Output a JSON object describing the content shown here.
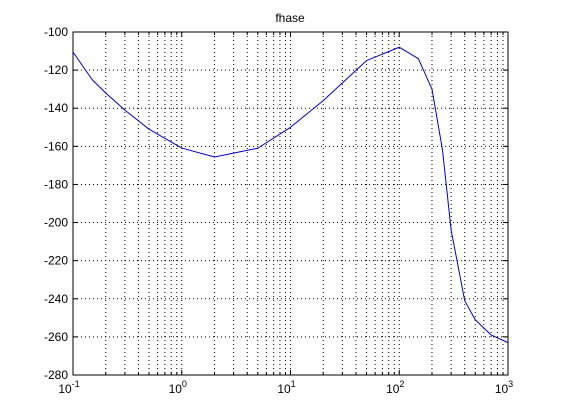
{
  "chart_data": {
    "type": "line",
    "title": "fhase",
    "xscale": "log",
    "grid": true,
    "x": [
      0.1,
      0.15,
      0.2,
      0.3,
      0.5,
      1,
      2,
      5,
      10,
      20,
      50,
      100,
      150,
      200,
      250,
      300,
      400,
      500,
      700,
      1000
    ],
    "series": [
      {
        "color": "#0000cc",
        "values": [
          -110.5,
          -125,
          -132,
          -141,
          -151,
          -160.9,
          -165.6,
          -161,
          -150,
          -136,
          -115,
          -108,
          -114,
          -130,
          -162,
          -204,
          -241,
          -251,
          -259,
          -263
        ]
      }
    ],
    "xlim": [
      0.1,
      1000
    ],
    "xticks": [
      {
        "value": 0.1,
        "label": "10",
        "exponent": "-1"
      },
      {
        "value": 1,
        "label": "10",
        "exponent": "0"
      },
      {
        "value": 10,
        "label": "10",
        "exponent": "1"
      },
      {
        "value": 100,
        "label": "10",
        "exponent": "2"
      },
      {
        "value": 1000,
        "label": "10",
        "exponent": "3"
      }
    ],
    "xminorticks": [
      0.2,
      0.3,
      0.4,
      0.5,
      0.6,
      0.7,
      0.8,
      0.9,
      2,
      3,
      4,
      5,
      6,
      7,
      8,
      9,
      20,
      30,
      40,
      50,
      60,
      70,
      80,
      90,
      200,
      300,
      400,
      500,
      600,
      700,
      800,
      900
    ],
    "ylim": [
      -280,
      -100
    ],
    "yticks": [
      -280,
      -260,
      -240,
      -220,
      -200,
      -180,
      -160,
      -140,
      -120,
      -100
    ]
  }
}
